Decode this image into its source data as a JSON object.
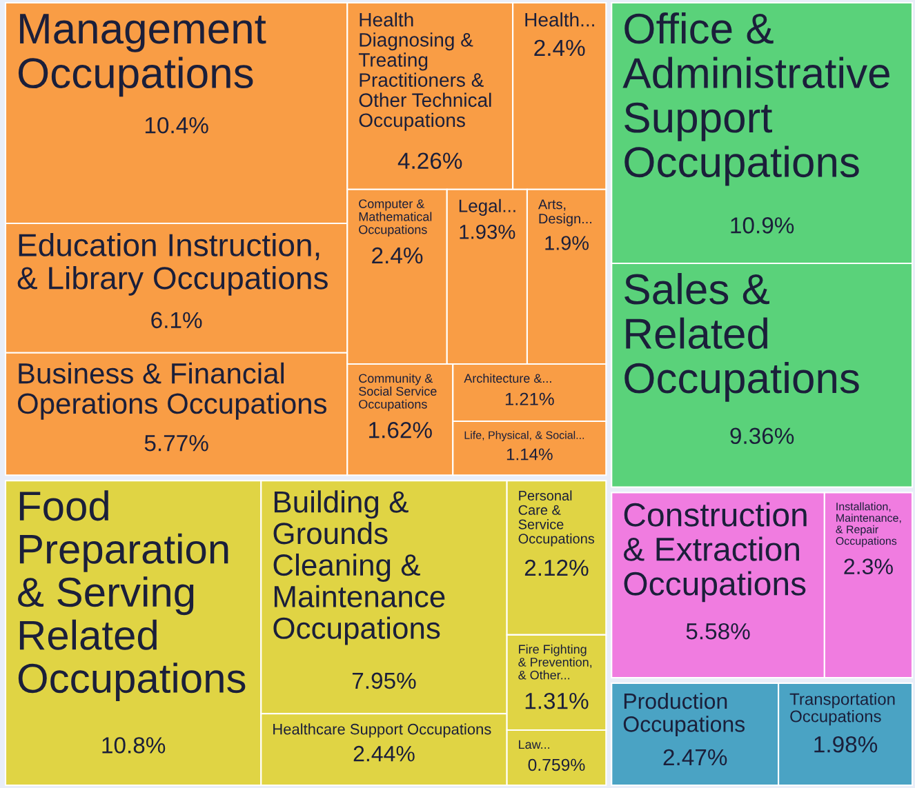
{
  "chart_data": {
    "type": "other",
    "categories": [
      "Management Occupations",
      "Education Instruction, & Library Occupations",
      "Business & Financial Operations Occupations",
      "Health Diagnosing & Treating Practitioners & Other Technical Occupations",
      "Health...",
      "Computer & Mathematical Occupations",
      "Legal...",
      "Arts, Design...",
      "Community & Social Service Occupations",
      "Architecture &...",
      "Life, Physical, & Social...",
      "Food Preparation & Serving Related Occupations",
      "Building & Grounds Cleaning & Maintenance Occupations",
      "Healthcare Support Occupations",
      "Personal Care & Service Occupations",
      "Fire Fighting & Prevention, & Other...",
      "Law...",
      "Office & Administrative Support Occupations",
      "Sales & Related Occupations",
      "Construction & Extraction Occupations",
      "Installation, Maintenance, & Repair Occupations",
      "Production Occupations",
      "Transportation Occupations"
    ],
    "values": [
      10.4,
      6.1,
      5.77,
      4.26,
      2.4,
      2.4,
      1.93,
      1.9,
      1.62,
      1.21,
      1.14,
      10.8,
      7.95,
      2.44,
      2.12,
      1.31,
      0.759,
      10.9,
      9.36,
      5.58,
      2.3,
      2.47,
      1.98
    ],
    "value_labels": [
      "10.4%",
      "6.1%",
      "5.77%",
      "4.26%",
      "2.4%",
      "2.4%",
      "1.93%",
      "1.9%",
      "1.62%",
      "1.21%",
      "1.14%",
      "10.8%",
      "7.95%",
      "2.44%",
      "2.12%",
      "1.31%",
      "0.759%",
      "10.9%",
      "9.36%",
      "5.58%",
      "2.3%",
      "2.47%",
      "1.98%"
    ],
    "colors": [
      "#f99d45",
      "#f99d45",
      "#f99d45",
      "#f99d45",
      "#f99d45",
      "#f99d45",
      "#f99d45",
      "#f99d45",
      "#f99d45",
      "#f99d45",
      "#f99d45",
      "#e0d444",
      "#e0d444",
      "#e0d444",
      "#e0d444",
      "#e0d444",
      "#e0d444",
      "#5ad27a",
      "#5ad27a",
      "#f07ce0",
      "#f07ce0",
      "#4aa3c4",
      "#4aa3c4"
    ]
  }
}
